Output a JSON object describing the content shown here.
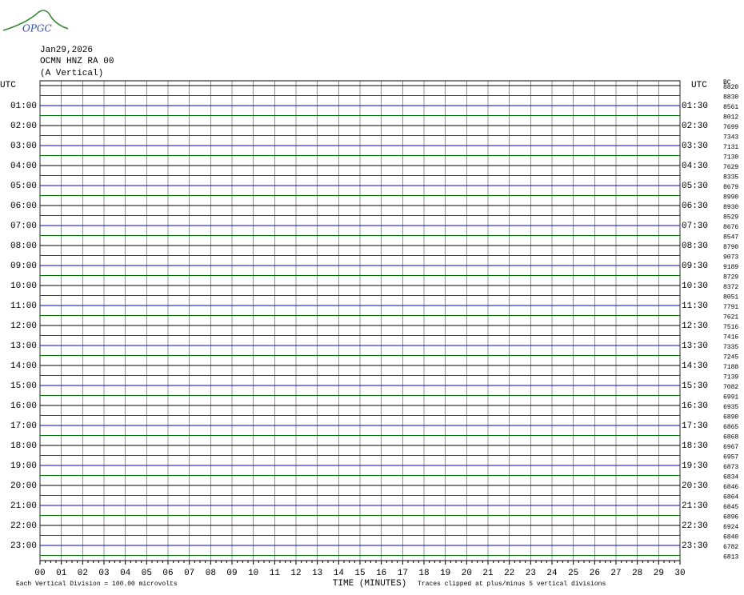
{
  "header": {
    "logo": "OPGC",
    "date": "Jan29,2026",
    "station": "OCMN HNZ RA 00",
    "component": "(A Vertical)"
  },
  "left_axis": {
    "title": "UTC",
    "labels": [
      "01:00",
      "02:00",
      "03:00",
      "04:00",
      "05:00",
      "06:00",
      "07:00",
      "08:00",
      "09:00",
      "10:00",
      "11:00",
      "12:00",
      "13:00",
      "14:00",
      "15:00",
      "16:00",
      "17:00",
      "18:00",
      "19:00",
      "20:00",
      "21:00",
      "22:00",
      "23:00"
    ]
  },
  "right_axis": {
    "title": "UTC",
    "labels": [
      "01:30",
      "02:30",
      "03:30",
      "04:30",
      "05:30",
      "06:30",
      "07:30",
      "08:30",
      "09:30",
      "10:30",
      "11:30",
      "12:30",
      "13:30",
      "14:30",
      "15:30",
      "16:30",
      "17:30",
      "18:30",
      "19:30",
      "20:30",
      "21:30",
      "22:30",
      "23:30"
    ]
  },
  "clip_column": {
    "title": "BC",
    "values": [
      "8820",
      "8830",
      "8561",
      "8012",
      "7699",
      "7343",
      "7131",
      "7130",
      "7629",
      "8335",
      "8679",
      "8990",
      "8930",
      "8529",
      "8676",
      "8547",
      "8790",
      "9073",
      "9189",
      "8729",
      "8372",
      "8051",
      "7791",
      "7621",
      "7516",
      "7416",
      "7335",
      "7245",
      "7188",
      "7139",
      "7082",
      "6991",
      "6935",
      "6890",
      "6865",
      "6868",
      "6967",
      "6957",
      "6873",
      "6834",
      "6846",
      "6864",
      "6845",
      "6896",
      "6924",
      "6840",
      "6782",
      "6813"
    ]
  },
  "x_axis": {
    "labels": [
      "00",
      "01",
      "02",
      "03",
      "04",
      "05",
      "06",
      "07",
      "08",
      "09",
      "10",
      "11",
      "12",
      "13",
      "14",
      "15",
      "16",
      "17",
      "18",
      "19",
      "20",
      "21",
      "22",
      "23",
      "24",
      "25",
      "26",
      "27",
      "28",
      "29",
      "30"
    ],
    "title": "TIME (MINUTES)"
  },
  "trace_colors": [
    "#000000",
    "#e00000",
    "#0000e0",
    "#007000"
  ],
  "footer": {
    "scale": "Each Vertical Division =  100.00 microvolts",
    "clip": "Traces clipped at plus/minus 5 vertical divisions"
  }
}
